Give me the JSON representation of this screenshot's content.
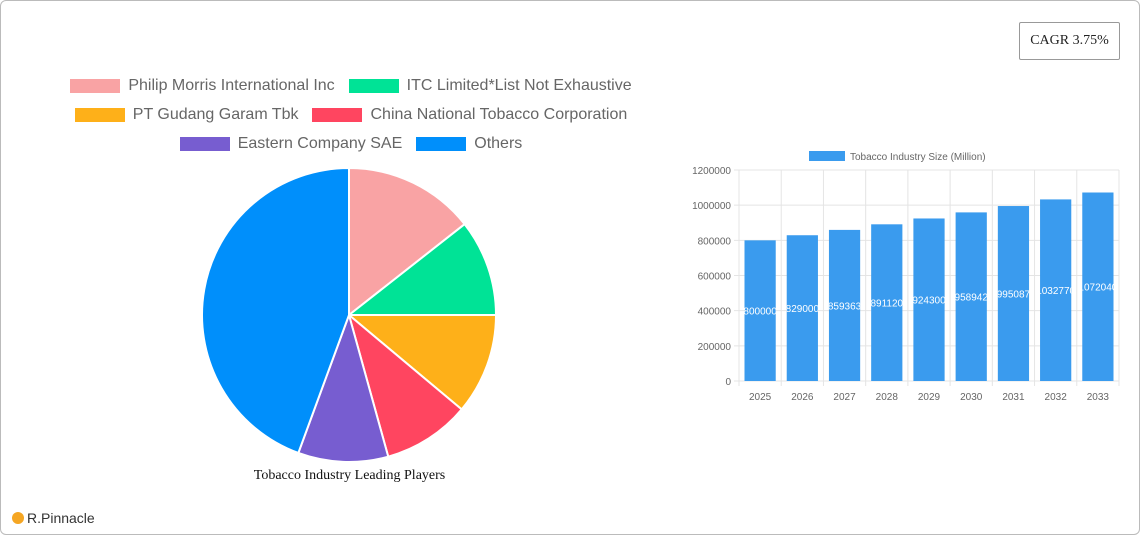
{
  "cagr_label": "CAGR 3.75%",
  "logo_text": "R.Pinnacle",
  "chart_data": [
    {
      "type": "pie",
      "title": "Tobacco Industry Leading Players",
      "legend_position": "top",
      "labels": [
        "Philip Morris International Inc",
        "ITC Limited*List Not Exhaustive",
        "PT Gudang Garam Tbk",
        "China National Tobacco Corporation",
        "Eastern Company SAE",
        "Others"
      ],
      "values": [
        14.4,
        10.6,
        11.1,
        9.6,
        9.9,
        44.4
      ],
      "colors": [
        "#f9a3a4",
        "#00e396",
        "#feb019",
        "#ff4560",
        "#775dd0",
        "#008ffb"
      ]
    },
    {
      "type": "bar",
      "legend": "Tobacco Industry Size (Million)",
      "legend_position": "top",
      "categories": [
        "2025",
        "2026",
        "2027",
        "2028",
        "2029",
        "2030",
        "2031",
        "2032",
        "2033"
      ],
      "values": [
        800000,
        829000,
        859363,
        891120,
        924300,
        958942,
        995087,
        1032770,
        1072040
      ],
      "ylim": [
        0,
        1200000
      ],
      "yticks": [
        "0",
        "200000",
        "400000",
        "600000",
        "800000",
        "1000000",
        "1200000"
      ],
      "grid": true,
      "color": "#3a9bee"
    }
  ]
}
